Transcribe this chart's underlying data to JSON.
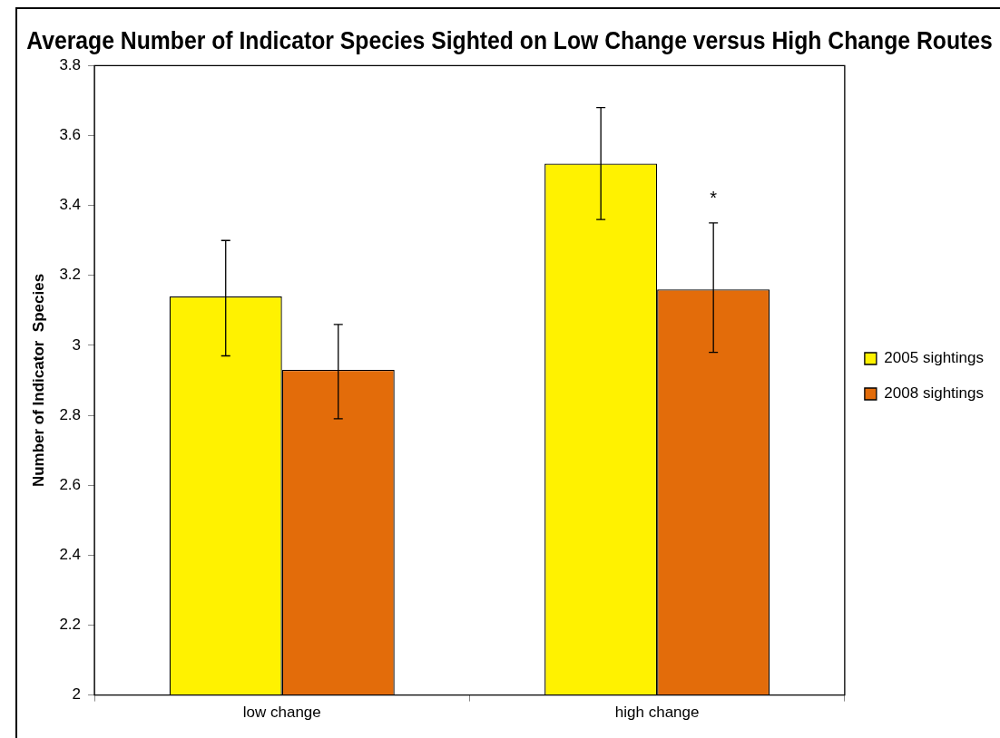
{
  "chart_data": {
    "type": "bar",
    "title": "Average Number of Indicator Species Sighted on Low Change versus High Change Routes",
    "ylabel": "Number of Indicator  Species",
    "categories": [
      "low change",
      "high change"
    ],
    "series": [
      {
        "name": "2005 sightings",
        "color": "#fff200",
        "values": [
          3.14,
          3.52
        ],
        "errors": [
          [
            2.97,
            3.3
          ],
          [
            3.36,
            3.68
          ]
        ]
      },
      {
        "name": "2008 sightings",
        "color": "#e36c0a",
        "values": [
          2.93,
          3.16
        ],
        "errors": [
          [
            2.79,
            3.06
          ],
          [
            2.98,
            3.35
          ]
        ]
      }
    ],
    "ylim": [
      2,
      3.8
    ],
    "yticks": [
      2,
      2.2,
      2.4,
      2.6,
      2.8,
      3,
      3.2,
      3.4,
      3.6,
      3.8
    ],
    "annotations": [
      {
        "text": "*",
        "x": "high change",
        "y": 3.43
      }
    ],
    "legend": "right",
    "grid": false
  }
}
